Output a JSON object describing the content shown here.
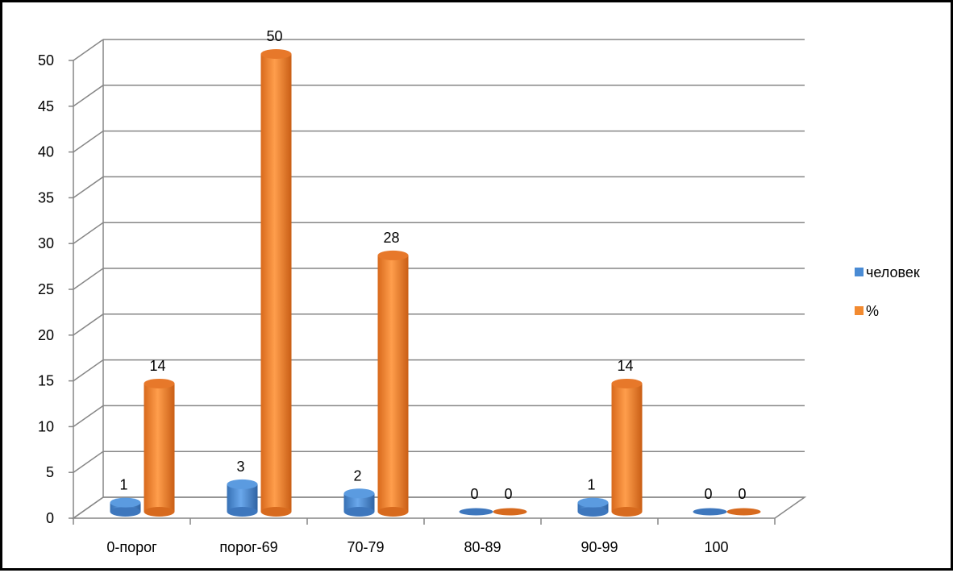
{
  "chart_data": {
    "type": "bar",
    "title": "",
    "xlabel": "",
    "ylabel": "",
    "categories": [
      "0-порог",
      "порог-69",
      "70-79",
      "80-89",
      "90-99",
      "100"
    ],
    "series": [
      {
        "name": "человек",
        "values": [
          1,
          3,
          2,
          0,
          1,
          0
        ],
        "color": "#4a8bd4"
      },
      {
        "name": "%",
        "values": [
          14,
          50,
          28,
          0,
          14,
          0
        ],
        "color": "#f28a30"
      }
    ],
    "ylim": [
      0,
      50
    ],
    "yticks": [
      0,
      5,
      10,
      15,
      20,
      25,
      30,
      35,
      40,
      45,
      50
    ],
    "grid": true,
    "legend": "right",
    "style": "3d-cylinder"
  }
}
